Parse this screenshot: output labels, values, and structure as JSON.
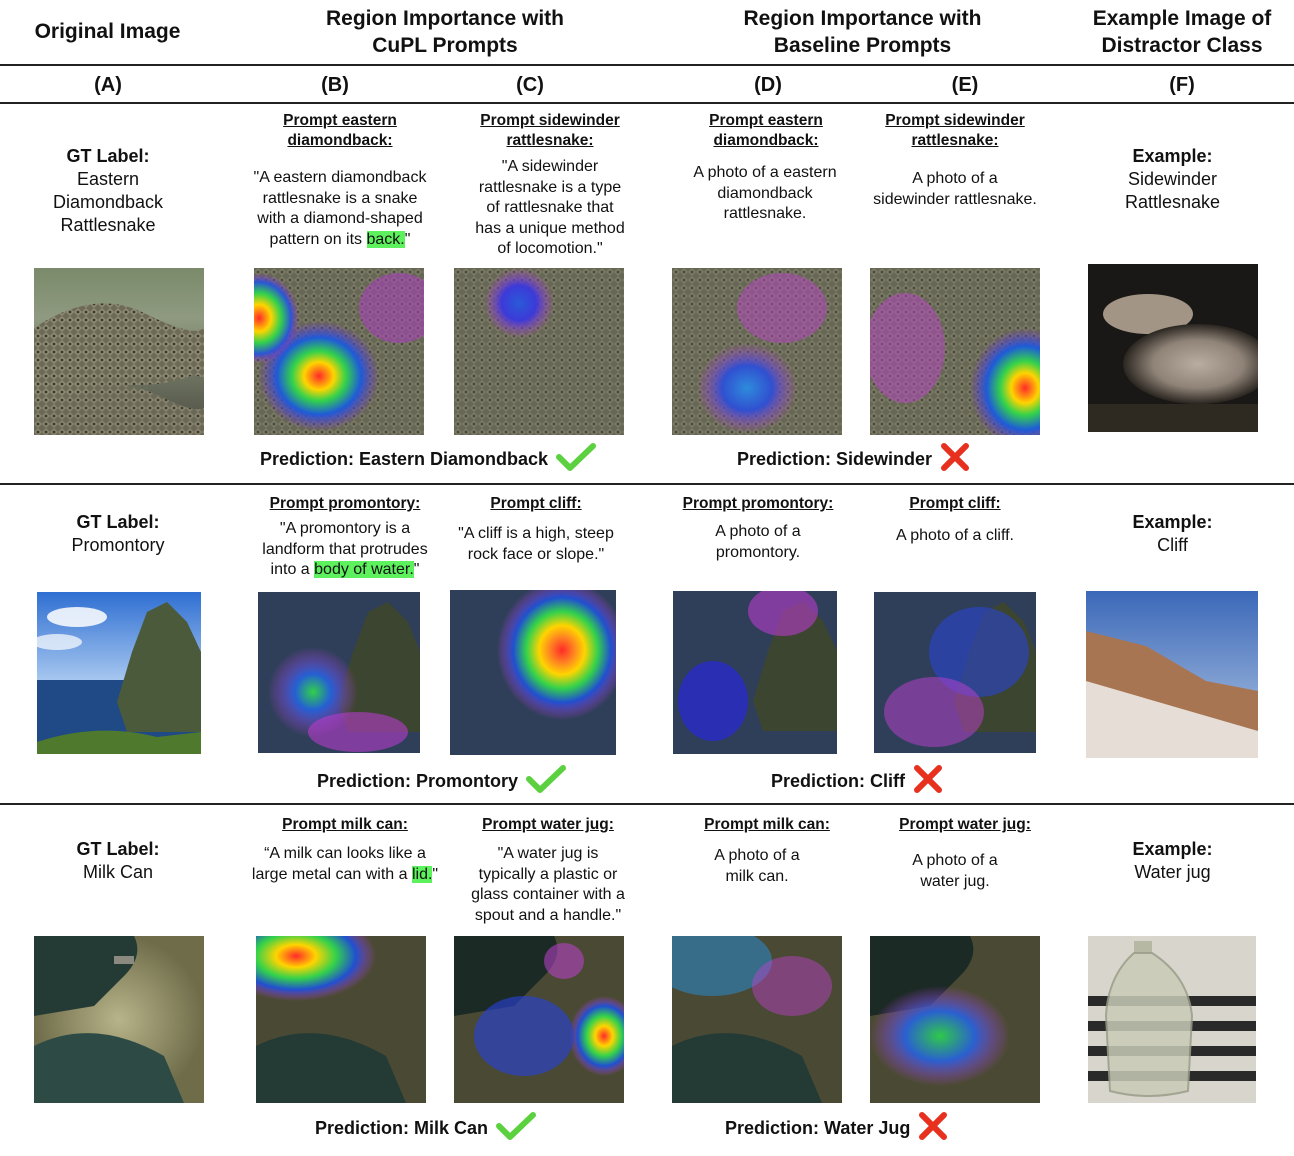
{
  "headers": {
    "original": "Original Image",
    "cupl": "Region Importance with\nCuPL Prompts",
    "baseline": "Region Importance with\nBaseline Prompts",
    "distractor": "Example Image of\nDistractor Class"
  },
  "letters": [
    "(A)",
    "(B)",
    "(C)",
    "(D)",
    "(E)",
    "(F)"
  ],
  "rows": [
    {
      "gt_title": "GT Label:",
      "gt_label": "Eastern\nDiamondback\nRattlesnake",
      "b_title": "Prompt eastern\ndiamondback:",
      "b_text_pre": "\"A eastern diamondback\nrattlesnake is a snake\nwith a diamond-shaped\npattern on its ",
      "b_text_hl": "back.",
      "b_text_post": "\"",
      "c_title": "Prompt sidewinder\nrattlesnake:",
      "c_text": "\"A sidewinder\nrattlesnake is a type\nof rattlesnake that\nhas a unique method\nof locomotion.\"",
      "d_title": "Prompt eastern\ndiamondback:",
      "d_text": "A photo of a eastern\ndiamondback\nrattlesnake.",
      "e_title": "Prompt sidewinder\nrattlesnake:",
      "e_text": "A photo of a\nsidewinder rattlesnake.",
      "f_title": "Example:",
      "f_label": "Sidewinder\nRattlesnake",
      "pred_cupl": "Prediction: Eastern Diamondback",
      "pred_base": "Prediction: Sidewinder"
    },
    {
      "gt_title": "GT Label:",
      "gt_label": "Promontory",
      "b_title": "Prompt promontory:",
      "b_text_pre": "\"A promontory is a\nlandform that protrudes\ninto a ",
      "b_text_hl": "body of water.",
      "b_text_post": "\"",
      "c_title": "Prompt cliff:",
      "c_text": "\"A cliff is a high, steep\nrock face or slope.\"",
      "d_title": "Prompt promontory:",
      "d_text": "A photo of a\npromontory.",
      "e_title": "Prompt cliff:",
      "e_text": "A photo of a cliff.",
      "f_title": "Example:",
      "f_label": "Cliff",
      "pred_cupl": "Prediction: Promontory",
      "pred_base": "Prediction: Cliff"
    },
    {
      "gt_title": "GT Label:",
      "gt_label": "Milk Can",
      "b_title": "Prompt milk can:",
      "b_text_pre": "“A milk can looks like a\nlarge metal can with a ",
      "b_text_hl": "lid.",
      "b_text_post": "\"",
      "c_title": "Prompt water jug:",
      "c_text": "\"A water jug is\ntypically a plastic or\nglass container with a\nspout and a handle.\"",
      "d_title": "Prompt milk can:",
      "d_text": "A photo of a\nmilk can.",
      "e_title": "Prompt water jug:",
      "e_text": "A photo of a\nwater jug.",
      "f_title": "Example:",
      "f_label": "Water jug",
      "pred_cupl": "Prediction: Milk Can",
      "pred_base": "Prediction: Water Jug"
    }
  ],
  "colors": {
    "check": "#5cd13f",
    "cross": "#e8301f",
    "highlight": "#5df25d"
  }
}
